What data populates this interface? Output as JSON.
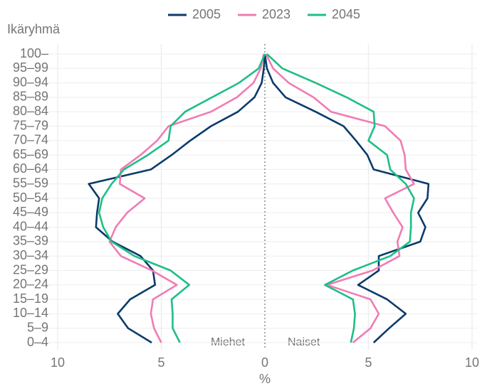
{
  "chart_data": {
    "type": "pyramid-line",
    "y_label": "Ikäryhmä",
    "x_label": "%",
    "left_label": "Miehet",
    "right_label": "Naiset",
    "categories": [
      "0–4",
      "5–9",
      "10–14",
      "15–19",
      "20–24",
      "25–29",
      "30–34",
      "35–39",
      "40–44",
      "45–49",
      "50–54",
      "55–59",
      "60–64",
      "65–69",
      "70–74",
      "75–79",
      "80–84",
      "85–89",
      "90–94",
      "95–99",
      "100–"
    ],
    "xlim": [
      0,
      10
    ],
    "xticks": [
      0,
      5,
      10
    ],
    "grid": true,
    "legend": "top",
    "series": [
      {
        "name": "2005",
        "color": "#0b3b6b",
        "men": [
          5.46,
          6.6,
          7.1,
          6.5,
          5.3,
          5.4,
          6.0,
          7.35,
          8.15,
          8.1,
          8.0,
          8.5,
          5.5,
          4.5,
          3.6,
          2.6,
          1.3,
          0.5,
          0.15,
          0.05,
          0
        ],
        "women": [
          5.25,
          6.0,
          6.8,
          5.9,
          4.5,
          5.5,
          5.5,
          7.5,
          7.75,
          7.4,
          7.85,
          7.9,
          5.25,
          4.95,
          4.4,
          3.8,
          2.45,
          1.0,
          0.4,
          0.1,
          0
        ]
      },
      {
        "name": "2023",
        "color": "#f07cb4",
        "men": [
          5.0,
          5.35,
          5.5,
          5.4,
          4.25,
          5.45,
          6.95,
          7.5,
          7.2,
          6.65,
          5.8,
          7.0,
          6.95,
          6.0,
          5.2,
          4.65,
          2.6,
          1.35,
          0.55,
          0.2,
          0.05
        ],
        "women": [
          4.25,
          5.1,
          5.5,
          5.1,
          3.0,
          5.2,
          6.5,
          6.4,
          6.65,
          6.2,
          5.8,
          7.2,
          6.8,
          6.75,
          6.55,
          5.8,
          3.2,
          2.35,
          1.15,
          0.4,
          0.05
        ]
      },
      {
        "name": "2045",
        "color": "#1dbf85",
        "men": [
          4.1,
          4.45,
          4.45,
          4.5,
          3.65,
          4.55,
          6.3,
          7.4,
          7.8,
          8.0,
          7.85,
          7.4,
          6.8,
          5.65,
          4.65,
          4.55,
          3.85,
          2.55,
          1.25,
          0.3,
          0
        ],
        "women": [
          4.15,
          4.3,
          4.35,
          4.25,
          2.9,
          4.25,
          6.05,
          7.0,
          7.05,
          7.05,
          7.2,
          6.8,
          6.05,
          5.9,
          5.0,
          5.3,
          5.25,
          3.95,
          2.45,
          0.85,
          0.1
        ]
      }
    ]
  }
}
